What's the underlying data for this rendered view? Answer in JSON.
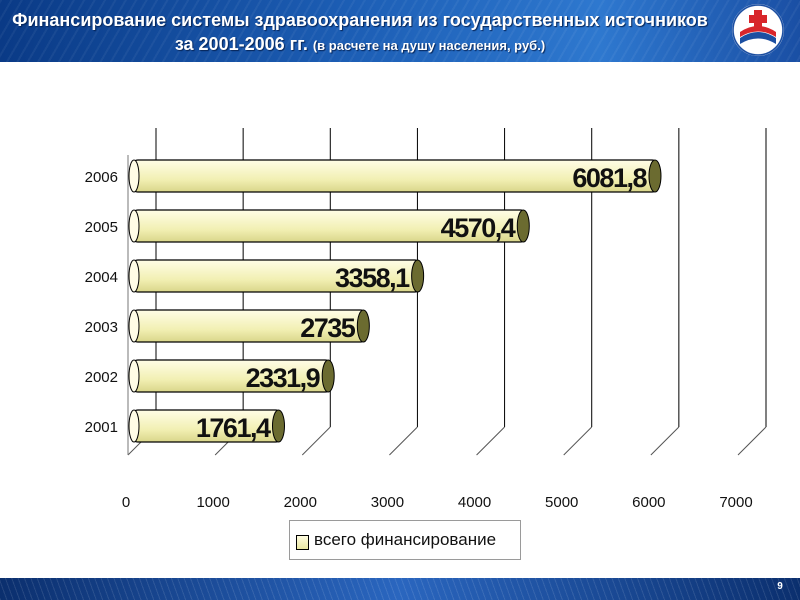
{
  "header": {
    "title_main": "Финансирование системы здравоохранения из государственных источников за 2001-2006 гг.",
    "title_note": "(в расчете на душу населения, руб.)",
    "logo_icon": "ministry-cross-emblem-icon"
  },
  "footer": {
    "page_number": "9"
  },
  "colors": {
    "header_blue": "#1d5fb6",
    "bar_fill": "#f2f0b4",
    "bar_edge": "#6b6b30",
    "gridline": "#000000"
  },
  "chart_data": {
    "type": "bar",
    "orientation": "horizontal",
    "style": "3d-cylinder",
    "categories": [
      "2006",
      "2005",
      "2004",
      "2003",
      "2002",
      "2001"
    ],
    "series": [
      {
        "name": "всего финансирование",
        "values": [
          6081.8,
          4570.4,
          3358.1,
          2735,
          2331.9,
          1761.4
        ]
      }
    ],
    "data_labels": [
      "6081,8",
      "4570,4",
      "3358,1",
      "2735",
      "2331,9",
      "1761,4"
    ],
    "x_ticks": [
      0,
      1000,
      2000,
      3000,
      4000,
      5000,
      6000,
      7000
    ],
    "xlim": [
      0,
      7000
    ],
    "grid": "vertical",
    "legend": "bottom"
  }
}
